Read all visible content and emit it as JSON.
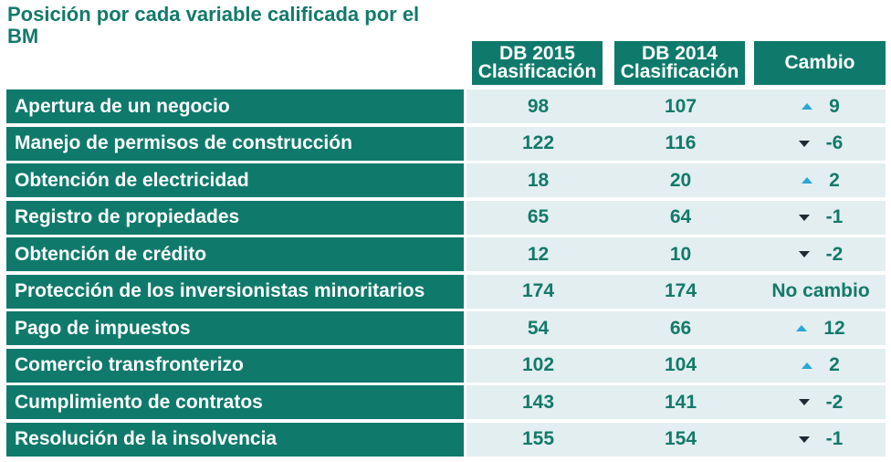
{
  "title": "Posición por cada variable calificada por el BM",
  "headers": [
    "DB 2015 Clasificación",
    "DB 2014 Clasificación",
    "Cambio"
  ],
  "colors": {
    "teal": "#0f7a6b",
    "row_bg": "#e3eef0",
    "up": "#2aa7d6",
    "down": "#1c2b33"
  },
  "rows": [
    {
      "label": "Apertura de un negocio",
      "db2015": "98",
      "db2014": "107",
      "change": "9",
      "dir": "up"
    },
    {
      "label": "Manejo de permisos de construcción",
      "db2015": "122",
      "db2014": "116",
      "change": "-6",
      "dir": "down"
    },
    {
      "label": "Obtención de electricidad",
      "db2015": "18",
      "db2014": "20",
      "change": "2",
      "dir": "up"
    },
    {
      "label": "Registro de propiedades",
      "db2015": "65",
      "db2014": "64",
      "change": "-1",
      "dir": "down"
    },
    {
      "label": "Obtención de crédito",
      "db2015": "12",
      "db2014": "10",
      "change": "-2",
      "dir": "down"
    },
    {
      "label": "Protección de los inversionistas minoritarios",
      "db2015": "174",
      "db2014": "174",
      "change": "No cambio",
      "dir": "none"
    },
    {
      "label": "Pago de impuestos",
      "db2015": "54",
      "db2014": "66",
      "change": "12",
      "dir": "up"
    },
    {
      "label": "Comercio transfronterizo",
      "db2015": "102",
      "db2014": "104",
      "change": "2",
      "dir": "up"
    },
    {
      "label": "Cumplimiento de contratos",
      "db2015": "143",
      "db2014": "141",
      "change": "-2",
      "dir": "down"
    },
    {
      "label": "Resolución de la insolvencia",
      "db2015": "155",
      "db2014": "154",
      "change": "-1",
      "dir": "down"
    }
  ]
}
